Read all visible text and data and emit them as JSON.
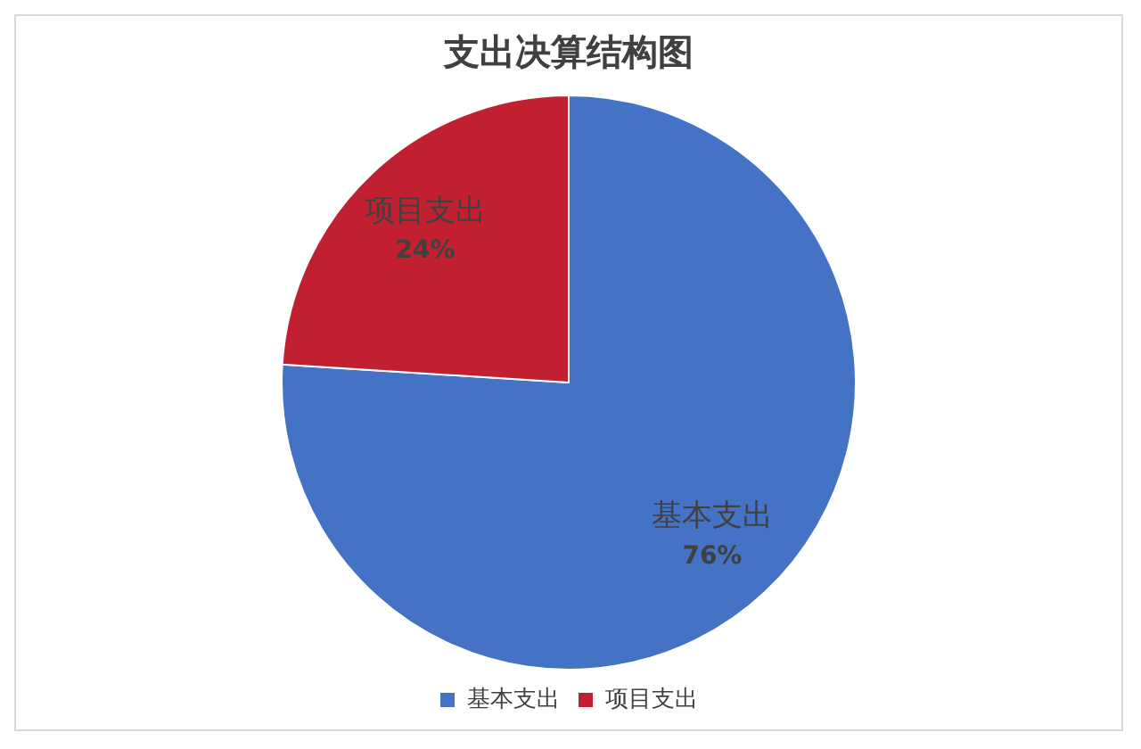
{
  "chart_data": {
    "type": "pie",
    "title": "支出决算结构图",
    "categories": [
      "基本支出",
      "项目支出"
    ],
    "values": [
      76,
      24
    ],
    "colors": [
      "#4472c4",
      "#c0202f"
    ],
    "value_labels": [
      "76%",
      "24%"
    ],
    "legend": "bottom"
  }
}
